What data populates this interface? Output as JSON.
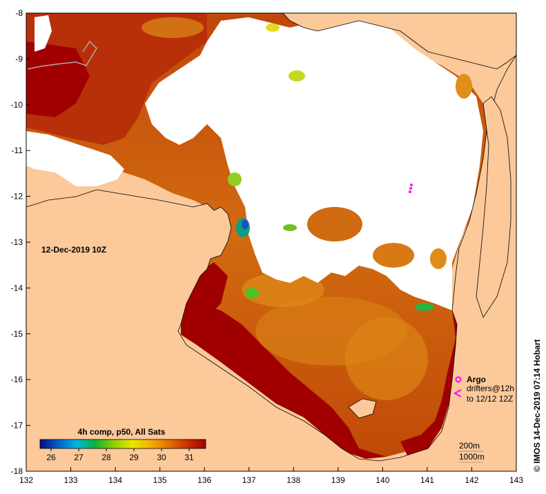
{
  "map": {
    "date_label": "12-Dec-2019 10Z",
    "credit": "© IMOS 14-Dec-2019 07:14 Hobart",
    "composite_label": "4h comp, p50, All Sats",
    "longitude_ticks": [
      "132",
      "133",
      "134",
      "135",
      "136",
      "137",
      "138",
      "139",
      "140",
      "141",
      "142",
      "143"
    ],
    "latitude_ticks": [
      "-8",
      "-9",
      "-10",
      "-11",
      "-12",
      "-13",
      "-14",
      "-15",
      "-16",
      "-17",
      "-18"
    ],
    "colorbar": {
      "ticks": [
        "26",
        "27",
        "28",
        "29",
        "30",
        "31"
      ],
      "range": [
        25.6,
        31.6
      ],
      "colors": [
        "#0b0b80",
        "#0063c8",
        "#00b6e0",
        "#10b038",
        "#8ed000",
        "#e8e800",
        "#f2b000",
        "#e07000",
        "#c83200",
        "#a00000"
      ]
    },
    "legend": {
      "argo_label": "Argo",
      "argo_color": "#ff00ff",
      "drifters_line1": "drifters@12h",
      "drifters_line2": "to 12/12 12Z",
      "contour_200m": "200m",
      "contour_1000m": "1000m"
    },
    "colors": {
      "land": "#fbc99a",
      "cloud": "#ffffff",
      "sst_hot": "#a00000",
      "sst_warm": "#c8550c",
      "sst_mid": "#e08a10"
    }
  }
}
